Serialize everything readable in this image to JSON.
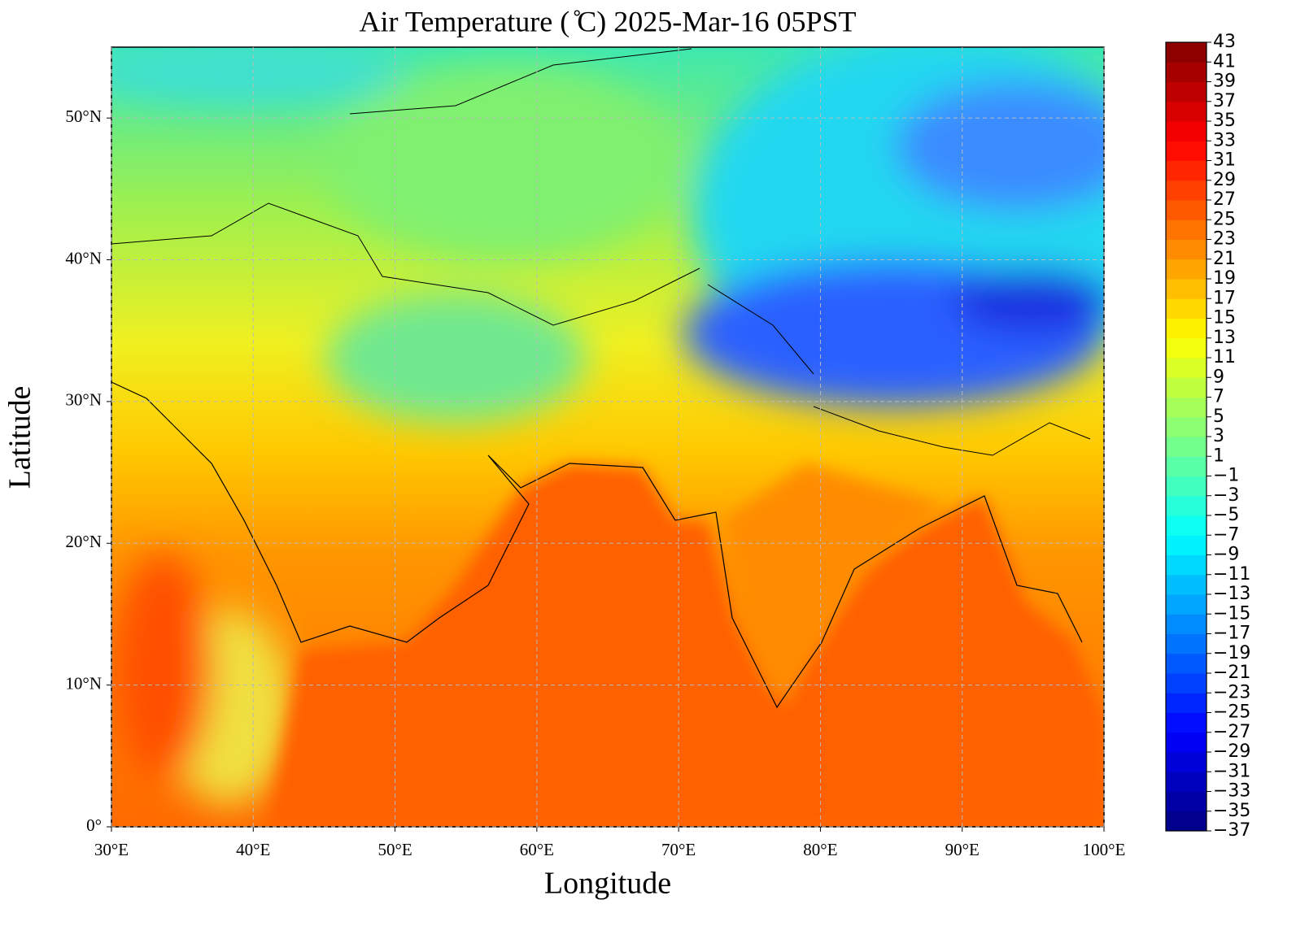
{
  "chart_data": {
    "type": "map",
    "title": "Air Temperature ( ̊C)  2025-Mar-16 05PST",
    "x_label": "Longitude",
    "y_label": "Latitude",
    "xlim": [
      30,
      100
    ],
    "ylim": [
      0,
      55
    ],
    "xticks": [
      {
        "value": 30,
        "label": "30°E"
      },
      {
        "value": 40,
        "label": "40°E"
      },
      {
        "value": 50,
        "label": "50°E"
      },
      {
        "value": 60,
        "label": "60°E"
      },
      {
        "value": 70,
        "label": "70°E"
      },
      {
        "value": 80,
        "label": "80°E"
      },
      {
        "value": 90,
        "label": "90°E"
      },
      {
        "value": 100,
        "label": "100°E"
      }
    ],
    "yticks": [
      {
        "value": 0,
        "label": "0°"
      },
      {
        "value": 10,
        "label": "10°N"
      },
      {
        "value": 20,
        "label": "20°N"
      },
      {
        "value": 30,
        "label": "30°N"
      },
      {
        "value": 40,
        "label": "40°N"
      },
      {
        "value": 50,
        "label": "50°N"
      }
    ],
    "grid": true,
    "colormap": "jet",
    "clim": [
      -37,
      43
    ],
    "cticks": [
      {
        "value": -37,
        "label": "−37"
      },
      {
        "value": -35,
        "label": "−35"
      },
      {
        "value": -33,
        "label": "−33"
      },
      {
        "value": -31,
        "label": "−31"
      },
      {
        "value": -29,
        "label": "−29"
      },
      {
        "value": -27,
        "label": "−27"
      },
      {
        "value": -25,
        "label": "−25"
      },
      {
        "value": -23,
        "label": "−23"
      },
      {
        "value": -21,
        "label": "−21"
      },
      {
        "value": -19,
        "label": "−19"
      },
      {
        "value": -17,
        "label": "−17"
      },
      {
        "value": -15,
        "label": "−15"
      },
      {
        "value": -13,
        "label": "−13"
      },
      {
        "value": -11,
        "label": "−11"
      },
      {
        "value": -9,
        "label": "−9"
      },
      {
        "value": -7,
        "label": "−7"
      },
      {
        "value": -5,
        "label": "−5"
      },
      {
        "value": -3,
        "label": "−3"
      },
      {
        "value": -1,
        "label": "−1"
      },
      1,
      3,
      5,
      7,
      9,
      11,
      13,
      15,
      17,
      19,
      21,
      23,
      25,
      27,
      29,
      31,
      33,
      35,
      37,
      39,
      41,
      43
    ]
  }
}
